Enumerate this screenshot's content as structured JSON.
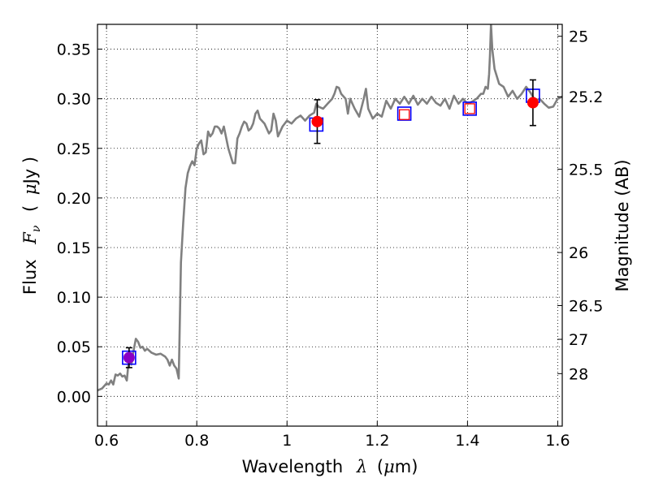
{
  "chart_data": {
    "type": "line",
    "xlabel_text": "Wavelength",
    "xlabel_math": "λ",
    "xlabel_unit_open": "(",
    "xlabel_unit_mu": "μ",
    "xlabel_unit_rest": "m)",
    "ylabel_text": "Flux",
    "ylabel_math": "F",
    "ylabel_sub": "ν",
    "ylabel_unit_open": "(",
    "ylabel_unit_mu": "μ",
    "ylabel_unit_rest": "Jy )",
    "ylabel_right": "Magnitude (AB)",
    "xlim": [
      0.58,
      1.61
    ],
    "ylim": [
      -0.03,
      0.375
    ],
    "grid": true,
    "x_ticks": [
      0.6,
      0.8,
      1.0,
      1.2,
      1.4,
      1.6
    ],
    "x_tick_labels": [
      "0.6",
      "0.8",
      "1",
      "1.2",
      "1.4",
      "1.6"
    ],
    "y_ticks": [
      0.0,
      0.05,
      0.1,
      0.15,
      0.2,
      0.25,
      0.3,
      0.35
    ],
    "y_tick_labels": [
      "0.00",
      "0.05",
      "0.10",
      "0.15",
      "0.20",
      "0.25",
      "0.30",
      "0.35"
    ],
    "right_ticks": [
      {
        "label": "25",
        "flux": 0.363
      },
      {
        "label": "25.2",
        "flux": 0.302
      },
      {
        "label": "25.5",
        "flux": 0.229
      },
      {
        "label": "26",
        "flux": 0.145
      },
      {
        "label": "26.5",
        "flux": 0.0915
      },
      {
        "label": "27",
        "flux": 0.0575
      },
      {
        "label": "28",
        "flux": 0.0229
      }
    ],
    "series": [
      {
        "type": "line",
        "color": "#808080",
        "x": [
          0.58,
          0.59,
          0.6,
          0.605,
          0.61,
          0.615,
          0.62,
          0.625,
          0.63,
          0.635,
          0.64,
          0.645,
          0.65,
          0.655,
          0.66,
          0.665,
          0.67,
          0.675,
          0.68,
          0.685,
          0.69,
          0.7,
          0.71,
          0.72,
          0.73,
          0.735,
          0.74,
          0.745,
          0.75,
          0.755,
          0.758,
          0.76,
          0.765,
          0.77,
          0.775,
          0.78,
          0.785,
          0.79,
          0.795,
          0.8,
          0.805,
          0.81,
          0.815,
          0.82,
          0.825,
          0.83,
          0.835,
          0.84,
          0.845,
          0.85,
          0.855,
          0.86,
          0.87,
          0.88,
          0.885,
          0.89,
          0.895,
          0.9,
          0.905,
          0.91,
          0.915,
          0.92,
          0.925,
          0.93,
          0.935,
          0.94,
          0.95,
          0.96,
          0.965,
          0.97,
          0.975,
          0.98,
          0.99,
          1.0,
          1.01,
          1.02,
          1.03,
          1.04,
          1.05,
          1.06,
          1.065,
          1.07,
          1.08,
          1.09,
          1.1,
          1.105,
          1.11,
          1.115,
          1.12,
          1.13,
          1.135,
          1.14,
          1.15,
          1.16,
          1.17,
          1.175,
          1.18,
          1.19,
          1.2,
          1.21,
          1.22,
          1.23,
          1.24,
          1.25,
          1.26,
          1.27,
          1.28,
          1.29,
          1.3,
          1.31,
          1.32,
          1.33,
          1.34,
          1.35,
          1.36,
          1.37,
          1.38,
          1.39,
          1.4,
          1.41,
          1.42,
          1.43,
          1.435,
          1.44,
          1.445,
          1.448,
          1.45,
          1.452,
          1.455,
          1.46,
          1.47,
          1.48,
          1.49,
          1.5,
          1.51,
          1.52,
          1.53,
          1.54,
          1.55,
          1.56,
          1.57,
          1.58,
          1.59,
          1.6,
          1.61
        ],
        "y": [
          0.006,
          0.008,
          0.013,
          0.012,
          0.016,
          0.012,
          0.022,
          0.021,
          0.023,
          0.02,
          0.021,
          0.016,
          0.04,
          0.032,
          0.046,
          0.058,
          0.055,
          0.049,
          0.05,
          0.046,
          0.048,
          0.044,
          0.042,
          0.043,
          0.04,
          0.037,
          0.031,
          0.037,
          0.031,
          0.028,
          0.022,
          0.018,
          0.135,
          0.175,
          0.21,
          0.225,
          0.232,
          0.237,
          0.233,
          0.25,
          0.255,
          0.258,
          0.244,
          0.246,
          0.267,
          0.262,
          0.265,
          0.272,
          0.272,
          0.27,
          0.265,
          0.272,
          0.25,
          0.235,
          0.235,
          0.26,
          0.265,
          0.272,
          0.277,
          0.275,
          0.268,
          0.27,
          0.275,
          0.285,
          0.288,
          0.28,
          0.275,
          0.265,
          0.268,
          0.285,
          0.278,
          0.262,
          0.272,
          0.278,
          0.275,
          0.28,
          0.283,
          0.278,
          0.283,
          0.286,
          0.295,
          0.292,
          0.29,
          0.295,
          0.3,
          0.305,
          0.312,
          0.311,
          0.305,
          0.3,
          0.285,
          0.3,
          0.29,
          0.282,
          0.3,
          0.31,
          0.29,
          0.28,
          0.285,
          0.282,
          0.298,
          0.29,
          0.3,
          0.295,
          0.302,
          0.295,
          0.303,
          0.294,
          0.3,
          0.295,
          0.302,
          0.296,
          0.293,
          0.3,
          0.29,
          0.303,
          0.295,
          0.3,
          0.295,
          0.297,
          0.3,
          0.305,
          0.305,
          0.312,
          0.31,
          0.325,
          0.345,
          0.375,
          0.35,
          0.33,
          0.315,
          0.312,
          0.302,
          0.308,
          0.3,
          0.305,
          0.312,
          0.306,
          0.298,
          0.3,
          0.295,
          0.291,
          0.292,
          0.3,
          0.302
        ]
      },
      {
        "type": "scatter",
        "name_id": "blue-squares",
        "marker": "open-square",
        "color": "#0000ff",
        "x": [
          0.65,
          1.065,
          1.26,
          1.405,
          1.545
        ],
        "y": [
          0.039,
          0.274,
          0.285,
          0.29,
          0.303
        ]
      },
      {
        "type": "scatter",
        "name_id": "red-squares",
        "marker": "small-open-square",
        "color": "#ff0000",
        "x": [
          1.26,
          1.405
        ],
        "y": [
          0.284,
          0.29
        ]
      },
      {
        "type": "errorbar",
        "name_id": "measured-points",
        "marker": "filled-circle",
        "points": [
          {
            "x": 0.65,
            "y": 0.039,
            "ylo": 0.029,
            "yhi": 0.049,
            "color": "#8a00c4"
          },
          {
            "x": 1.067,
            "y": 0.277,
            "ylo": 0.255,
            "yhi": 0.299,
            "color": "#ff0000"
          },
          {
            "x": 1.545,
            "y": 0.296,
            "ylo": 0.273,
            "yhi": 0.319,
            "color": "#ff0000"
          }
        ]
      }
    ]
  }
}
